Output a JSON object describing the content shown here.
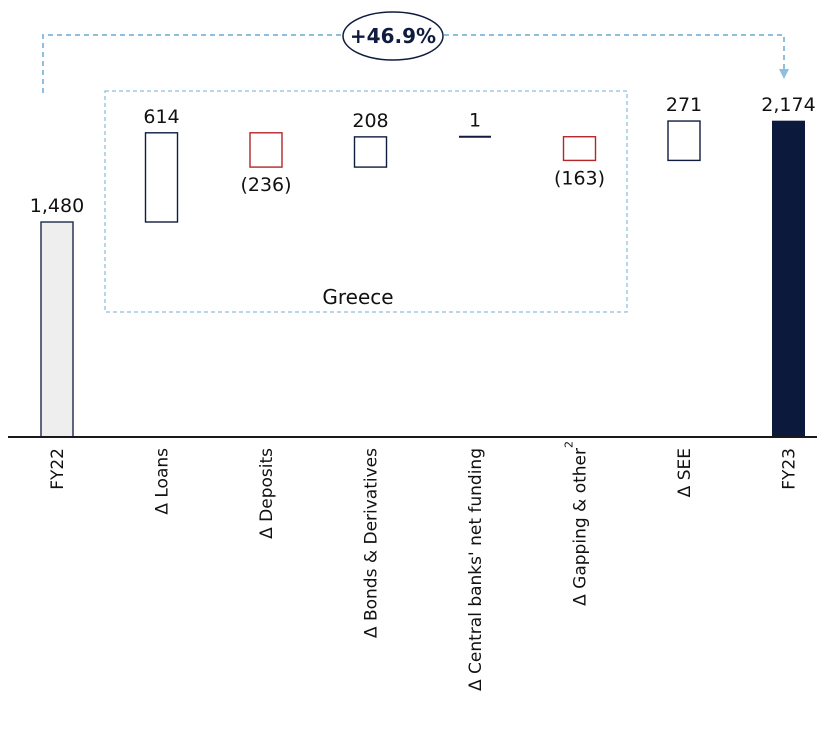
{
  "chart_data": {
    "type": "waterfall",
    "title": "",
    "xlabel": "",
    "ylabel": "",
    "categories": [
      "FY22",
      "Δ Loans",
      "Δ Deposits",
      "Δ Bonds & Derivatives",
      "Δ Central banks' net funding",
      "Δ Gapping & other",
      "Δ SEE",
      "FY23"
    ],
    "values": [
      1480,
      614,
      -236,
      208,
      1,
      -163,
      271,
      2174
    ],
    "value_labels": [
      "1,480",
      "614",
      "(236)",
      "208",
      "1",
      "(163)",
      "271",
      "2,174"
    ],
    "category_superscripts": [
      "",
      "",
      "",
      "",
      "",
      "2",
      "",
      ""
    ],
    "group_label": "Greece",
    "growth_label": "+46.9%",
    "grid": false,
    "colors": {
      "start_fill": "#eeeeee",
      "start_stroke": "#1b2a4a",
      "increase_stroke": "#0f1c3f",
      "decrease_stroke": "#b4262a",
      "total_fill": "#0b1a3c",
      "axis": "#1a1a1a",
      "bracket": "#8fbfdf",
      "text": "#111111"
    }
  }
}
